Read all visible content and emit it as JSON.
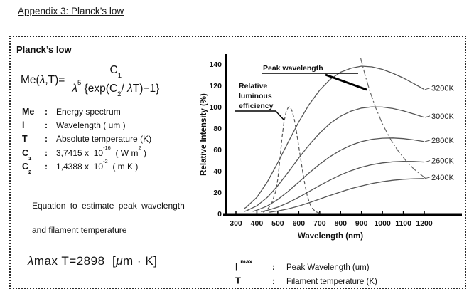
{
  "page": {
    "title": "Appendix 3: Planck’s low"
  },
  "panel": {
    "heading": "Planck’s low",
    "equation": {
      "lhs_pre": "Me(",
      "lhs_lambda": "λ",
      "lhs_post": ",T)=",
      "num_base": "C",
      "num_sub": "1",
      "den_lambda": "λ",
      "den_pow": "5",
      "den_mid": " {exp(C",
      "den_sub": "2",
      "den_slash": "/ ",
      "den_lambda2": "λ",
      "den_tail": "T)−1}"
    },
    "definitions": [
      {
        "sym": "Me",
        "sub": "",
        "colon": ":",
        "v1": "Energy spectrum",
        "v1sup": "",
        "v2": "",
        "v2sup": "",
        "v3": ""
      },
      {
        "sym": "l",
        "sub": "",
        "colon": ":",
        "v1": "Wavelength ( um )",
        "v1sup": "",
        "v2": "",
        "v2sup": "",
        "v3": ""
      },
      {
        "sym": "T",
        "sub": "",
        "colon": ":",
        "v1": "Absolute temperature (K)",
        "v1sup": "",
        "v2": "",
        "v2sup": "",
        "v3": ""
      },
      {
        "sym": "C",
        "sub": "1",
        "colon": ":",
        "v1": "3,7415 x  10",
        "v1sup": "-16",
        "v2": "  ( W m",
        "v2sup": "2",
        "v3": " )"
      },
      {
        "sym": "C",
        "sub": "2",
        "colon": ":",
        "v1": "1,4388 x  10",
        "v1sup": "-2",
        "v2": "  ( m K )",
        "v2sup": "",
        "v3": ""
      }
    ],
    "notes": [
      "Equation to estimate peak wavelength",
      "and filament temperature"
    ],
    "lambda_max": {
      "p1": "λ",
      "p2": "max T=2898  [",
      "p3": "μ",
      "p4": "m · K]"
    }
  },
  "legend": {
    "rows": [
      {
        "sym": "l",
        "sup": "max",
        "colon": ":",
        "desc": "Peak Wavelength  (um)"
      },
      {
        "sym": "T",
        "sup": "",
        "colon": ":",
        "desc": "Filament temperature (K)"
      }
    ]
  },
  "chart_data": {
    "type": "line",
    "title": "",
    "xlabel": "Wavelength (nm)",
    "ylabel": "Relative Intensity  (%)",
    "xlim": [
      250,
      1280
    ],
    "ylim": [
      0,
      147
    ],
    "grid": false,
    "legend_position": "right-of-curves",
    "x_ticks": [
      300,
      400,
      500,
      600,
      700,
      800,
      900,
      1000,
      1100,
      1200
    ],
    "y_ticks": [
      0,
      20,
      40,
      60,
      80,
      100,
      120,
      140
    ],
    "series": [
      {
        "name": "3200K",
        "style": "solid",
        "end_label": true,
        "x": [
          340,
          350,
          400,
          450,
          500,
          550,
          600,
          650,
          700,
          750,
          800,
          850,
          900,
          950,
          1000,
          1050,
          1100,
          1150,
          1200
        ],
        "y": [
          4.8,
          6.0,
          15.3,
          29.7,
          47.7,
          67.0,
          85.7,
          102.3,
          115.5,
          125.6,
          132.4,
          136.1,
          138.0,
          137.3,
          135.0,
          131.3,
          126.9,
          121.7,
          116.2
        ]
      },
      {
        "name": "3000K",
        "style": "solid",
        "end_label": true,
        "x": [
          340,
          350,
          400,
          450,
          500,
          550,
          600,
          650,
          700,
          750,
          800,
          850,
          900,
          950,
          1000,
          1050,
          1100,
          1150,
          1200
        ],
        "y": [
          2.0,
          2.6,
          7.3,
          15.2,
          26.1,
          38.8,
          52.0,
          64.4,
          75.4,
          84.4,
          91.2,
          95.9,
          98.8,
          99.9,
          99.7,
          98.4,
          96.2,
          93.3,
          90.1
        ]
      },
      {
        "name": "2800K",
        "style": "solid",
        "end_label": true,
        "x": [
          380,
          400,
          450,
          500,
          550,
          600,
          650,
          700,
          750,
          800,
          850,
          900,
          950,
          1000,
          1050,
          1100,
          1150,
          1200
        ],
        "y": [
          2.0,
          3.1,
          7.1,
          13.2,
          20.8,
          29.4,
          38.1,
          46.2,
          53.4,
          59.4,
          64.1,
          67.4,
          69.6,
          70.6,
          70.8,
          70.2,
          69.0,
          67.4
        ]
      },
      {
        "name": "2600K",
        "style": "solid",
        "end_label": true,
        "x": [
          420,
          450,
          500,
          550,
          600,
          650,
          700,
          750,
          800,
          850,
          900,
          950,
          1000,
          1050,
          1100,
          1150,
          1200
        ],
        "y": [
          1.7,
          3.0,
          6.0,
          10.2,
          15.2,
          20.7,
          26.3,
          31.5,
          36.2,
          40.2,
          43.4,
          45.8,
          47.5,
          48.5,
          48.9,
          48.8,
          48.3
        ]
      },
      {
        "name": "2400K",
        "style": "solid",
        "end_label": true,
        "x": [
          460,
          500,
          550,
          600,
          650,
          700,
          750,
          800,
          850,
          900,
          950,
          1000,
          1050,
          1100,
          1150,
          1200
        ],
        "y": [
          1.3,
          2.4,
          4.4,
          7.0,
          10.2,
          13.6,
          17.0,
          20.3,
          23.4,
          25.9,
          28.2,
          29.9,
          31.2,
          32.1,
          32.6,
          32.8
        ]
      },
      {
        "name": "Relative luminous efficiency",
        "style": "dashed",
        "end_label": false,
        "x": [
          430,
          450,
          470,
          490,
          500,
          510,
          520,
          530,
          540,
          550,
          555,
          560,
          570,
          580,
          590,
          600,
          610,
          620,
          630,
          640,
          650,
          660,
          680,
          700
        ],
        "y": [
          1.2,
          3.8,
          9.1,
          20.8,
          32.3,
          50.3,
          71.0,
          86.2,
          95.4,
          99.5,
          100.0,
          99.5,
          95.2,
          87.0,
          75.7,
          63.1,
          50.3,
          38.1,
          26.5,
          17.5,
          10.7,
          6.1,
          1.7,
          0.4
        ]
      },
      {
        "name": "Peak wavelength locus",
        "style": "dashdot",
        "end_label": false,
        "x": [
          896,
          906,
          920,
          940,
          966,
          1000,
          1035,
          1070,
          1115,
          1150,
          1207
        ],
        "y": [
          145.7,
          137.8,
          127.6,
          114.6,
          100.0,
          84.1,
          70.8,
          60.0,
          48.9,
          41.8,
          32.8
        ]
      }
    ],
    "annotations": [
      {
        "lines": [
          "Peak wavelength"
        ]
      },
      {
        "lines": [
          "Relative",
          "luminous",
          "efficiency"
        ]
      }
    ]
  }
}
